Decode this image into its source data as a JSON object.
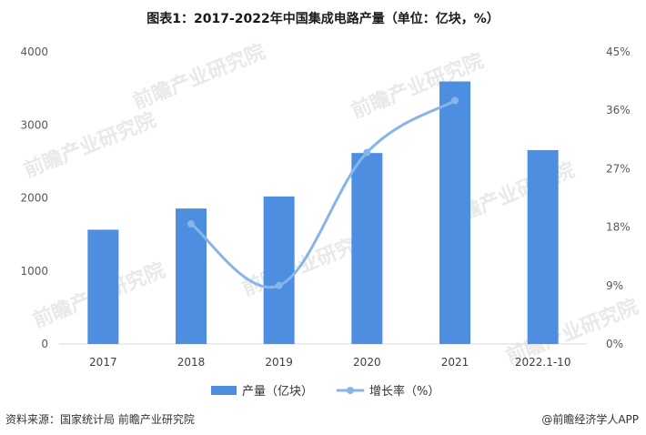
{
  "title": "图表1：2017-2022年中国集成电路产量（单位：亿块，%）",
  "source": "资料来源：国家统计局 前瞻产业研究院",
  "brand": "@前瞻经济学人APP",
  "watermark": "前瞻产业研究院",
  "colors": {
    "bar": "#4e8ee1",
    "line": "#86b5ea"
  },
  "chart_data": {
    "type": "bar",
    "categories": [
      "2017",
      "2018",
      "2019",
      "2020",
      "2021",
      "2022.1-10"
    ],
    "series": [
      {
        "name": "产量（亿块）",
        "type": "bar",
        "axis": "left",
        "values": [
          1565,
          1855,
          2020,
          2615,
          3595,
          2655
        ]
      },
      {
        "name": "增长率（%）",
        "type": "line",
        "axis": "right",
        "values": [
          null,
          18.5,
          9,
          29.5,
          37.5,
          null
        ]
      }
    ],
    "y_left": {
      "min": 0,
      "max": 4000,
      "ticks": [
        "0",
        "1000",
        "2000",
        "3000",
        "4000"
      ]
    },
    "y_right": {
      "min": 0,
      "max": 45,
      "ticks": [
        "0%",
        "9%",
        "18%",
        "27%",
        "36%",
        "45%"
      ]
    },
    "legend_position": "bottom"
  }
}
